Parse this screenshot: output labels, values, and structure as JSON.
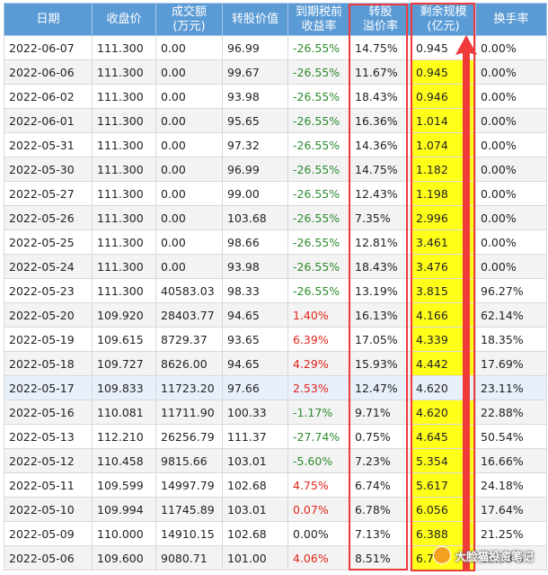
{
  "headers": [
    [
      "日期"
    ],
    [
      "收盘价"
    ],
    [
      "成交额",
      "(万元)"
    ],
    [
      "转股价值"
    ],
    [
      "到期税前",
      "收益率"
    ],
    [
      "转股",
      "溢价率"
    ],
    [
      "剩余规模",
      "(亿元)"
    ],
    [
      "换手率"
    ]
  ],
  "rows": [
    {
      "date": "2022-06-07",
      "close": "111.300",
      "volume": "0.00",
      "conv_value": "96.99",
      "ytm": "-26.55%",
      "premium": "14.75%",
      "remaining": "0.945",
      "turnover": "0.00%",
      "ytm_sign": "neg",
      "yellow": false
    },
    {
      "date": "2022-06-06",
      "close": "111.300",
      "volume": "0.00",
      "conv_value": "99.67",
      "ytm": "-26.55%",
      "premium": "11.67%",
      "remaining": "0.945",
      "turnover": "0.00%",
      "ytm_sign": "neg",
      "yellow": true
    },
    {
      "date": "2022-06-02",
      "close": "111.300",
      "volume": "0.00",
      "conv_value": "93.98",
      "ytm": "-26.55%",
      "premium": "18.43%",
      "remaining": "0.946",
      "turnover": "0.00%",
      "ytm_sign": "neg",
      "yellow": true
    },
    {
      "date": "2022-06-01",
      "close": "111.300",
      "volume": "0.00",
      "conv_value": "95.65",
      "ytm": "-26.55%",
      "premium": "16.36%",
      "remaining": "1.014",
      "turnover": "0.00%",
      "ytm_sign": "neg",
      "yellow": true
    },
    {
      "date": "2022-05-31",
      "close": "111.300",
      "volume": "0.00",
      "conv_value": "97.32",
      "ytm": "-26.55%",
      "premium": "14.36%",
      "remaining": "1.074",
      "turnover": "0.00%",
      "ytm_sign": "neg",
      "yellow": true
    },
    {
      "date": "2022-05-30",
      "close": "111.300",
      "volume": "0.00",
      "conv_value": "96.99",
      "ytm": "-26.55%",
      "premium": "14.75%",
      "remaining": "1.182",
      "turnover": "0.00%",
      "ytm_sign": "neg",
      "yellow": true
    },
    {
      "date": "2022-05-27",
      "close": "111.300",
      "volume": "0.00",
      "conv_value": "99.00",
      "ytm": "-26.55%",
      "premium": "12.43%",
      "remaining": "1.198",
      "turnover": "0.00%",
      "ytm_sign": "neg",
      "yellow": true
    },
    {
      "date": "2022-05-26",
      "close": "111.300",
      "volume": "0.00",
      "conv_value": "103.68",
      "ytm": "-26.55%",
      "premium": "7.35%",
      "remaining": "2.996",
      "turnover": "0.00%",
      "ytm_sign": "neg",
      "yellow": true
    },
    {
      "date": "2022-05-25",
      "close": "111.300",
      "volume": "0.00",
      "conv_value": "98.66",
      "ytm": "-26.55%",
      "premium": "12.81%",
      "remaining": "3.461",
      "turnover": "0.00%",
      "ytm_sign": "neg",
      "yellow": true
    },
    {
      "date": "2022-05-24",
      "close": "111.300",
      "volume": "0.00",
      "conv_value": "93.98",
      "ytm": "-26.55%",
      "premium": "18.43%",
      "remaining": "3.476",
      "turnover": "0.00%",
      "ytm_sign": "neg",
      "yellow": true
    },
    {
      "date": "2022-05-23",
      "close": "111.300",
      "volume": "40583.03",
      "conv_value": "98.33",
      "ytm": "-26.55%",
      "premium": "13.19%",
      "remaining": "3.815",
      "turnover": "96.27%",
      "ytm_sign": "neg",
      "yellow": true
    },
    {
      "date": "2022-05-20",
      "close": "109.920",
      "volume": "28403.77",
      "conv_value": "94.65",
      "ytm": "1.40%",
      "premium": "16.13%",
      "remaining": "4.166",
      "turnover": "62.14%",
      "ytm_sign": "pos",
      "yellow": true
    },
    {
      "date": "2022-05-19",
      "close": "109.615",
      "volume": "8729.37",
      "conv_value": "93.65",
      "ytm": "6.39%",
      "premium": "17.05%",
      "remaining": "4.339",
      "turnover": "18.35%",
      "ytm_sign": "pos",
      "yellow": true
    },
    {
      "date": "2022-05-18",
      "close": "109.727",
      "volume": "8626.00",
      "conv_value": "94.65",
      "ytm": "4.29%",
      "premium": "15.93%",
      "remaining": "4.442",
      "turnover": "17.69%",
      "ytm_sign": "pos",
      "yellow": true
    },
    {
      "date": "2022-05-17",
      "close": "109.833",
      "volume": "11723.20",
      "conv_value": "97.66",
      "ytm": "2.53%",
      "premium": "12.47%",
      "remaining": "4.620",
      "turnover": "23.11%",
      "ytm_sign": "pos",
      "yellow": false,
      "highlight": true
    },
    {
      "date": "2022-05-16",
      "close": "110.081",
      "volume": "11711.90",
      "conv_value": "100.33",
      "ytm": "-1.17%",
      "premium": "9.71%",
      "remaining": "4.620",
      "turnover": "22.88%",
      "ytm_sign": "neg",
      "yellow": true
    },
    {
      "date": "2022-05-13",
      "close": "112.210",
      "volume": "26256.79",
      "conv_value": "111.37",
      "ytm": "-27.74%",
      "premium": "0.75%",
      "remaining": "4.645",
      "turnover": "50.54%",
      "ytm_sign": "neg",
      "yellow": true
    },
    {
      "date": "2022-05-12",
      "close": "110.458",
      "volume": "9815.66",
      "conv_value": "103.01",
      "ytm": "-5.60%",
      "premium": "7.23%",
      "remaining": "5.354",
      "turnover": "16.66%",
      "ytm_sign": "neg",
      "yellow": true
    },
    {
      "date": "2022-05-11",
      "close": "109.599",
      "volume": "14997.79",
      "conv_value": "102.68",
      "ytm": "4.75%",
      "premium": "6.74%",
      "remaining": "5.617",
      "turnover": "24.18%",
      "ytm_sign": "pos",
      "yellow": true
    },
    {
      "date": "2022-05-10",
      "close": "109.994",
      "volume": "11745.89",
      "conv_value": "103.01",
      "ytm": "0.07%",
      "premium": "6.78%",
      "remaining": "6.056",
      "turnover": "17.64%",
      "ytm_sign": "pos",
      "yellow": true
    },
    {
      "date": "2022-05-09",
      "close": "110.000",
      "volume": "14910.15",
      "conv_value": "102.68",
      "ytm": "0.00%",
      "premium": "7.13%",
      "remaining": "6.388",
      "turnover": "21.25%",
      "ytm_sign": "none",
      "yellow": true
    },
    {
      "date": "2022-05-06",
      "close": "109.600",
      "volume": "9080.71",
      "conv_value": "101.00",
      "ytm": "4.06%",
      "premium": "8.51%",
      "remaining": "6.777",
      "turnover": "12.33%",
      "ytm_sign": "pos",
      "yellow": true
    }
  ],
  "watermark": "大脸猫投资笔记",
  "colors": {
    "header_bg": "#5b9bd5",
    "negative": "#2e8b2e",
    "positive": "#e0261c",
    "highlight_box": "#f03a3a",
    "yellow_fill": "#ffff1a"
  }
}
